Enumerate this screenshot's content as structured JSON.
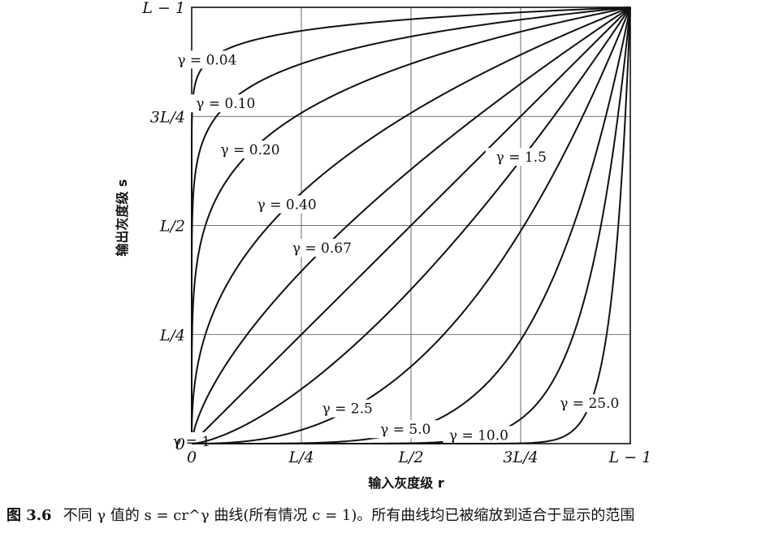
{
  "chart_data": {
    "type": "line",
    "function": "s = c r^γ",
    "c": 1,
    "xlabel": "输入灰度级 r",
    "ylabel": "输出灰度级 s",
    "xlim": [
      0,
      1
    ],
    "ylim": [
      0,
      1
    ],
    "grid": true,
    "x_ticks": [
      {
        "value": 0,
        "label": "0"
      },
      {
        "value": 0.25,
        "label": "L/4"
      },
      {
        "value": 0.5,
        "label": "L/2"
      },
      {
        "value": 0.75,
        "label": "3L/4"
      },
      {
        "value": 1,
        "label": "L − 1"
      }
    ],
    "y_ticks": [
      {
        "value": 0,
        "label": "0"
      },
      {
        "value": 0.25,
        "label": "L/4"
      },
      {
        "value": 0.5,
        "label": "L/2"
      },
      {
        "value": 0.75,
        "label": "3L/4"
      },
      {
        "value": 1,
        "label": "L − 1"
      }
    ],
    "series": [
      {
        "name": "γ = 0.04",
        "gamma": 0.04
      },
      {
        "name": "γ = 0.10",
        "gamma": 0.1
      },
      {
        "name": "γ = 0.20",
        "gamma": 0.2
      },
      {
        "name": "γ = 0.40",
        "gamma": 0.4
      },
      {
        "name": "γ = 0.67",
        "gamma": 0.67
      },
      {
        "name": "γ = 1",
        "gamma": 1
      },
      {
        "name": "γ = 1.5",
        "gamma": 1.5
      },
      {
        "name": "γ = 2.5",
        "gamma": 2.5
      },
      {
        "name": "γ = 5.0",
        "gamma": 5.0
      },
      {
        "name": "γ = 10.0",
        "gamma": 10.0
      },
      {
        "name": "γ = 25.0",
        "gamma": 25.0
      }
    ]
  },
  "caption": {
    "number": "图 3.6",
    "text": "不同 γ 值的 s = cr^γ 曲线(所有情况 c = 1)。所有曲线均已被缩放到适合于显示的范围"
  }
}
